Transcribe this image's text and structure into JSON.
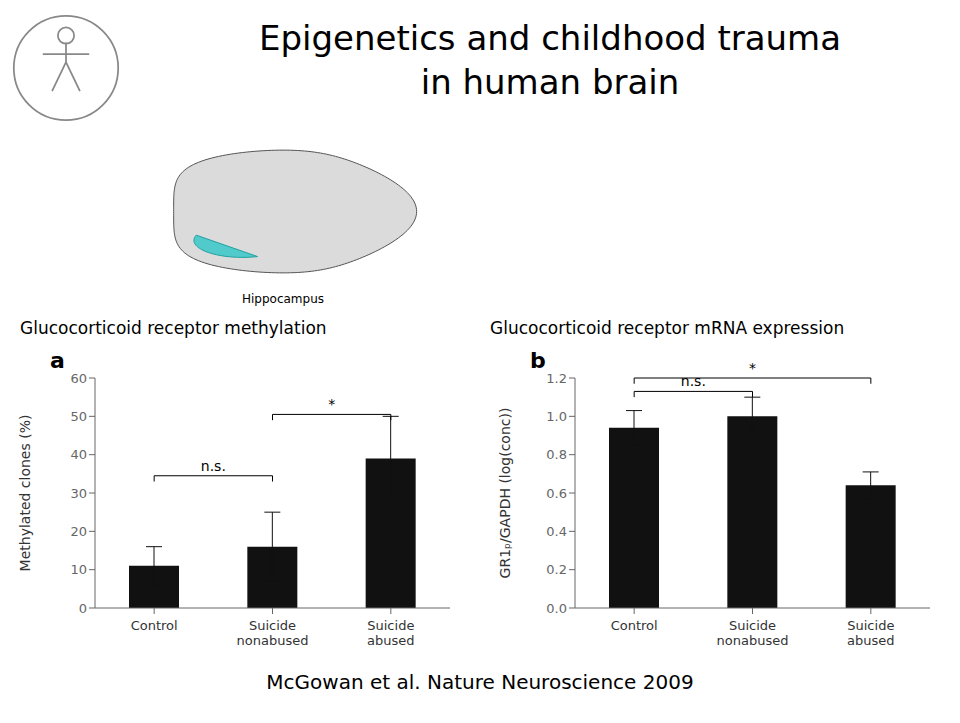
{
  "title": "Epigenetics and childhood trauma\nin human brain",
  "annotations": [
    {
      "text": "Hippocampus"
    },
    {
      "text": "McGowan et al. Nature Neuroscience 2009"
    }
  ],
  "chart_data": [
    {
      "type": "bar",
      "title": "Glucocorticoid receptor methylation",
      "categories": [
        "Control",
        "Suicide\nnonabused",
        "Suicide\nabused"
      ],
      "values": [
        11,
        16,
        39
      ],
      "errors": [
        5,
        9,
        11
      ],
      "color": "#111111",
      "ylabel": "Methylated clones (%)",
      "ylim": [
        0,
        60
      ],
      "yticks": [
        0,
        10,
        20,
        30,
        40,
        50,
        60
      ],
      "annotations": [
        {
          "text": "a"
        },
        {
          "text": "n.s.",
          "x1": "Control",
          "x2": "Suicide\nnonabused",
          "y": 33
        },
        {
          "text": "*",
          "x1": "Suicide\nnonabused",
          "x2": "Suicide\nabused",
          "y": 49
        }
      ]
    },
    {
      "type": "bar",
      "title": "Glucocorticoid receptor mRNA expression",
      "categories": [
        "Control",
        "Suicide\nnonabused",
        "Suicide\nabused"
      ],
      "values": [
        0.94,
        1.0,
        0.64
      ],
      "errors": [
        0.09,
        0.1,
        0.07
      ],
      "color": "#111111",
      "ylabel": "GR1ₚ/GAPDH (log(conc))",
      "ylim": [
        0,
        1.2
      ],
      "yticks": [
        {
          "value": 0,
          "label": "0.0"
        },
        0.2,
        0.4,
        0.6,
        0.8,
        {
          "value": 1.0,
          "label": "1.0"
        },
        1.2
      ],
      "annotations": [
        {
          "text": "b"
        },
        {
          "text": "n.s.",
          "x1": "Control",
          "x2": "Suicide\nnonabused",
          "y": 1.1
        },
        {
          "text": "*",
          "x1": "Control",
          "x2": "Suicide\nabused",
          "y": 1.17
        }
      ]
    }
  ]
}
